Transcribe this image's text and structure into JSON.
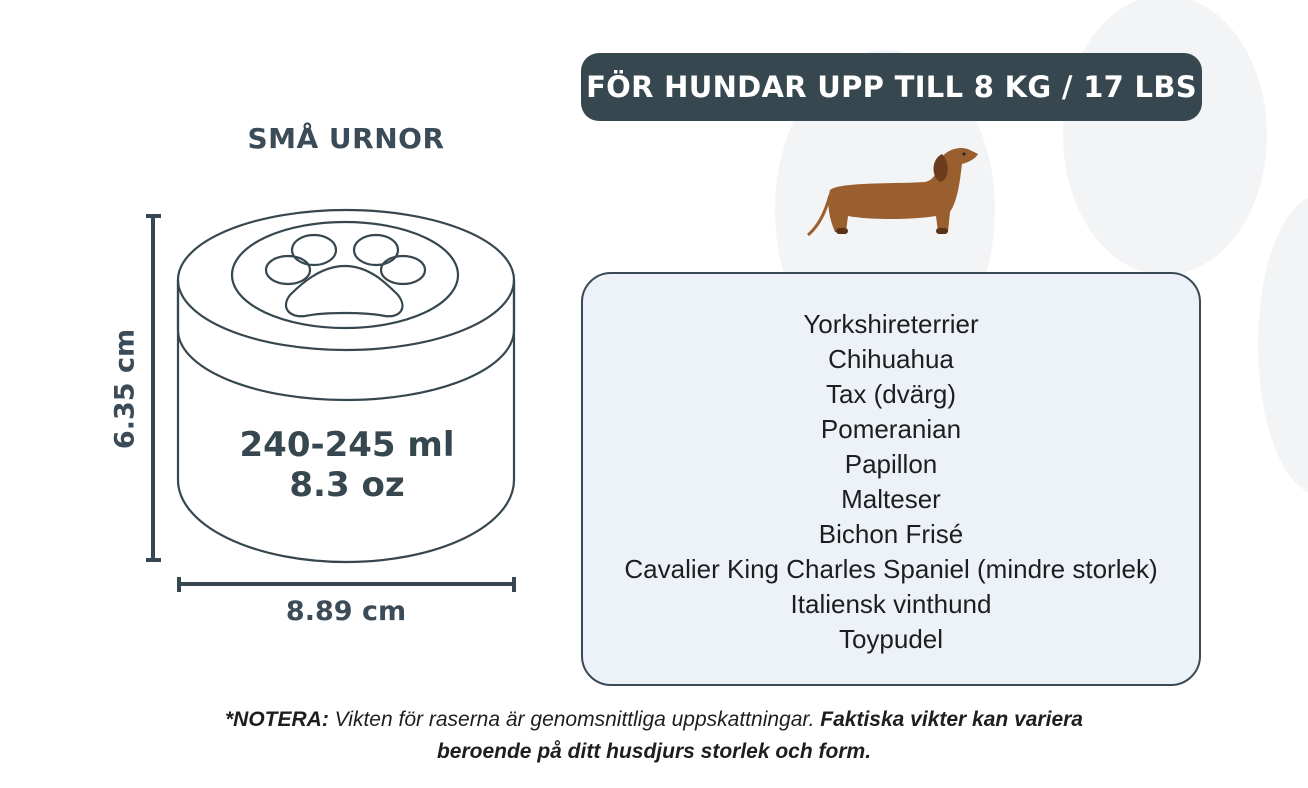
{
  "left": {
    "title": "SMÅ URNOR",
    "volume_ml": "240-245 ml",
    "volume_oz": "8.3 oz",
    "height": "6.35 cm",
    "width": "8.89 cm"
  },
  "right": {
    "weight_banner": "FÖR HUNDAR UPP TILL 8 KG / 17 LBS",
    "breeds": [
      "Yorkshireterrier",
      "Chihuahua",
      "Tax (dvärg)",
      "Pomeranian",
      "Papillon",
      "Malteser",
      "Bichon Frisé",
      "Cavalier King Charles Spaniel (mindre storlek)",
      "Italiensk vinthund",
      "Toypudel"
    ]
  },
  "note": {
    "label": "*NOTERA:",
    "text": " Vikten för raserna är genomsnittliga uppskattningar. ",
    "emphasis_1": "Faktiska vikter kan variera",
    "emphasis_2": "beroende på ditt husdjurs storlek och form."
  },
  "colors": {
    "dark": "#37474f",
    "box_bg": "#edf2f9",
    "paw_bg": "#f3f4f6",
    "dog": "#9a5f2e"
  },
  "icons": [
    "paw-print-background",
    "urn-paw-lid",
    "dachshund-illustration"
  ]
}
